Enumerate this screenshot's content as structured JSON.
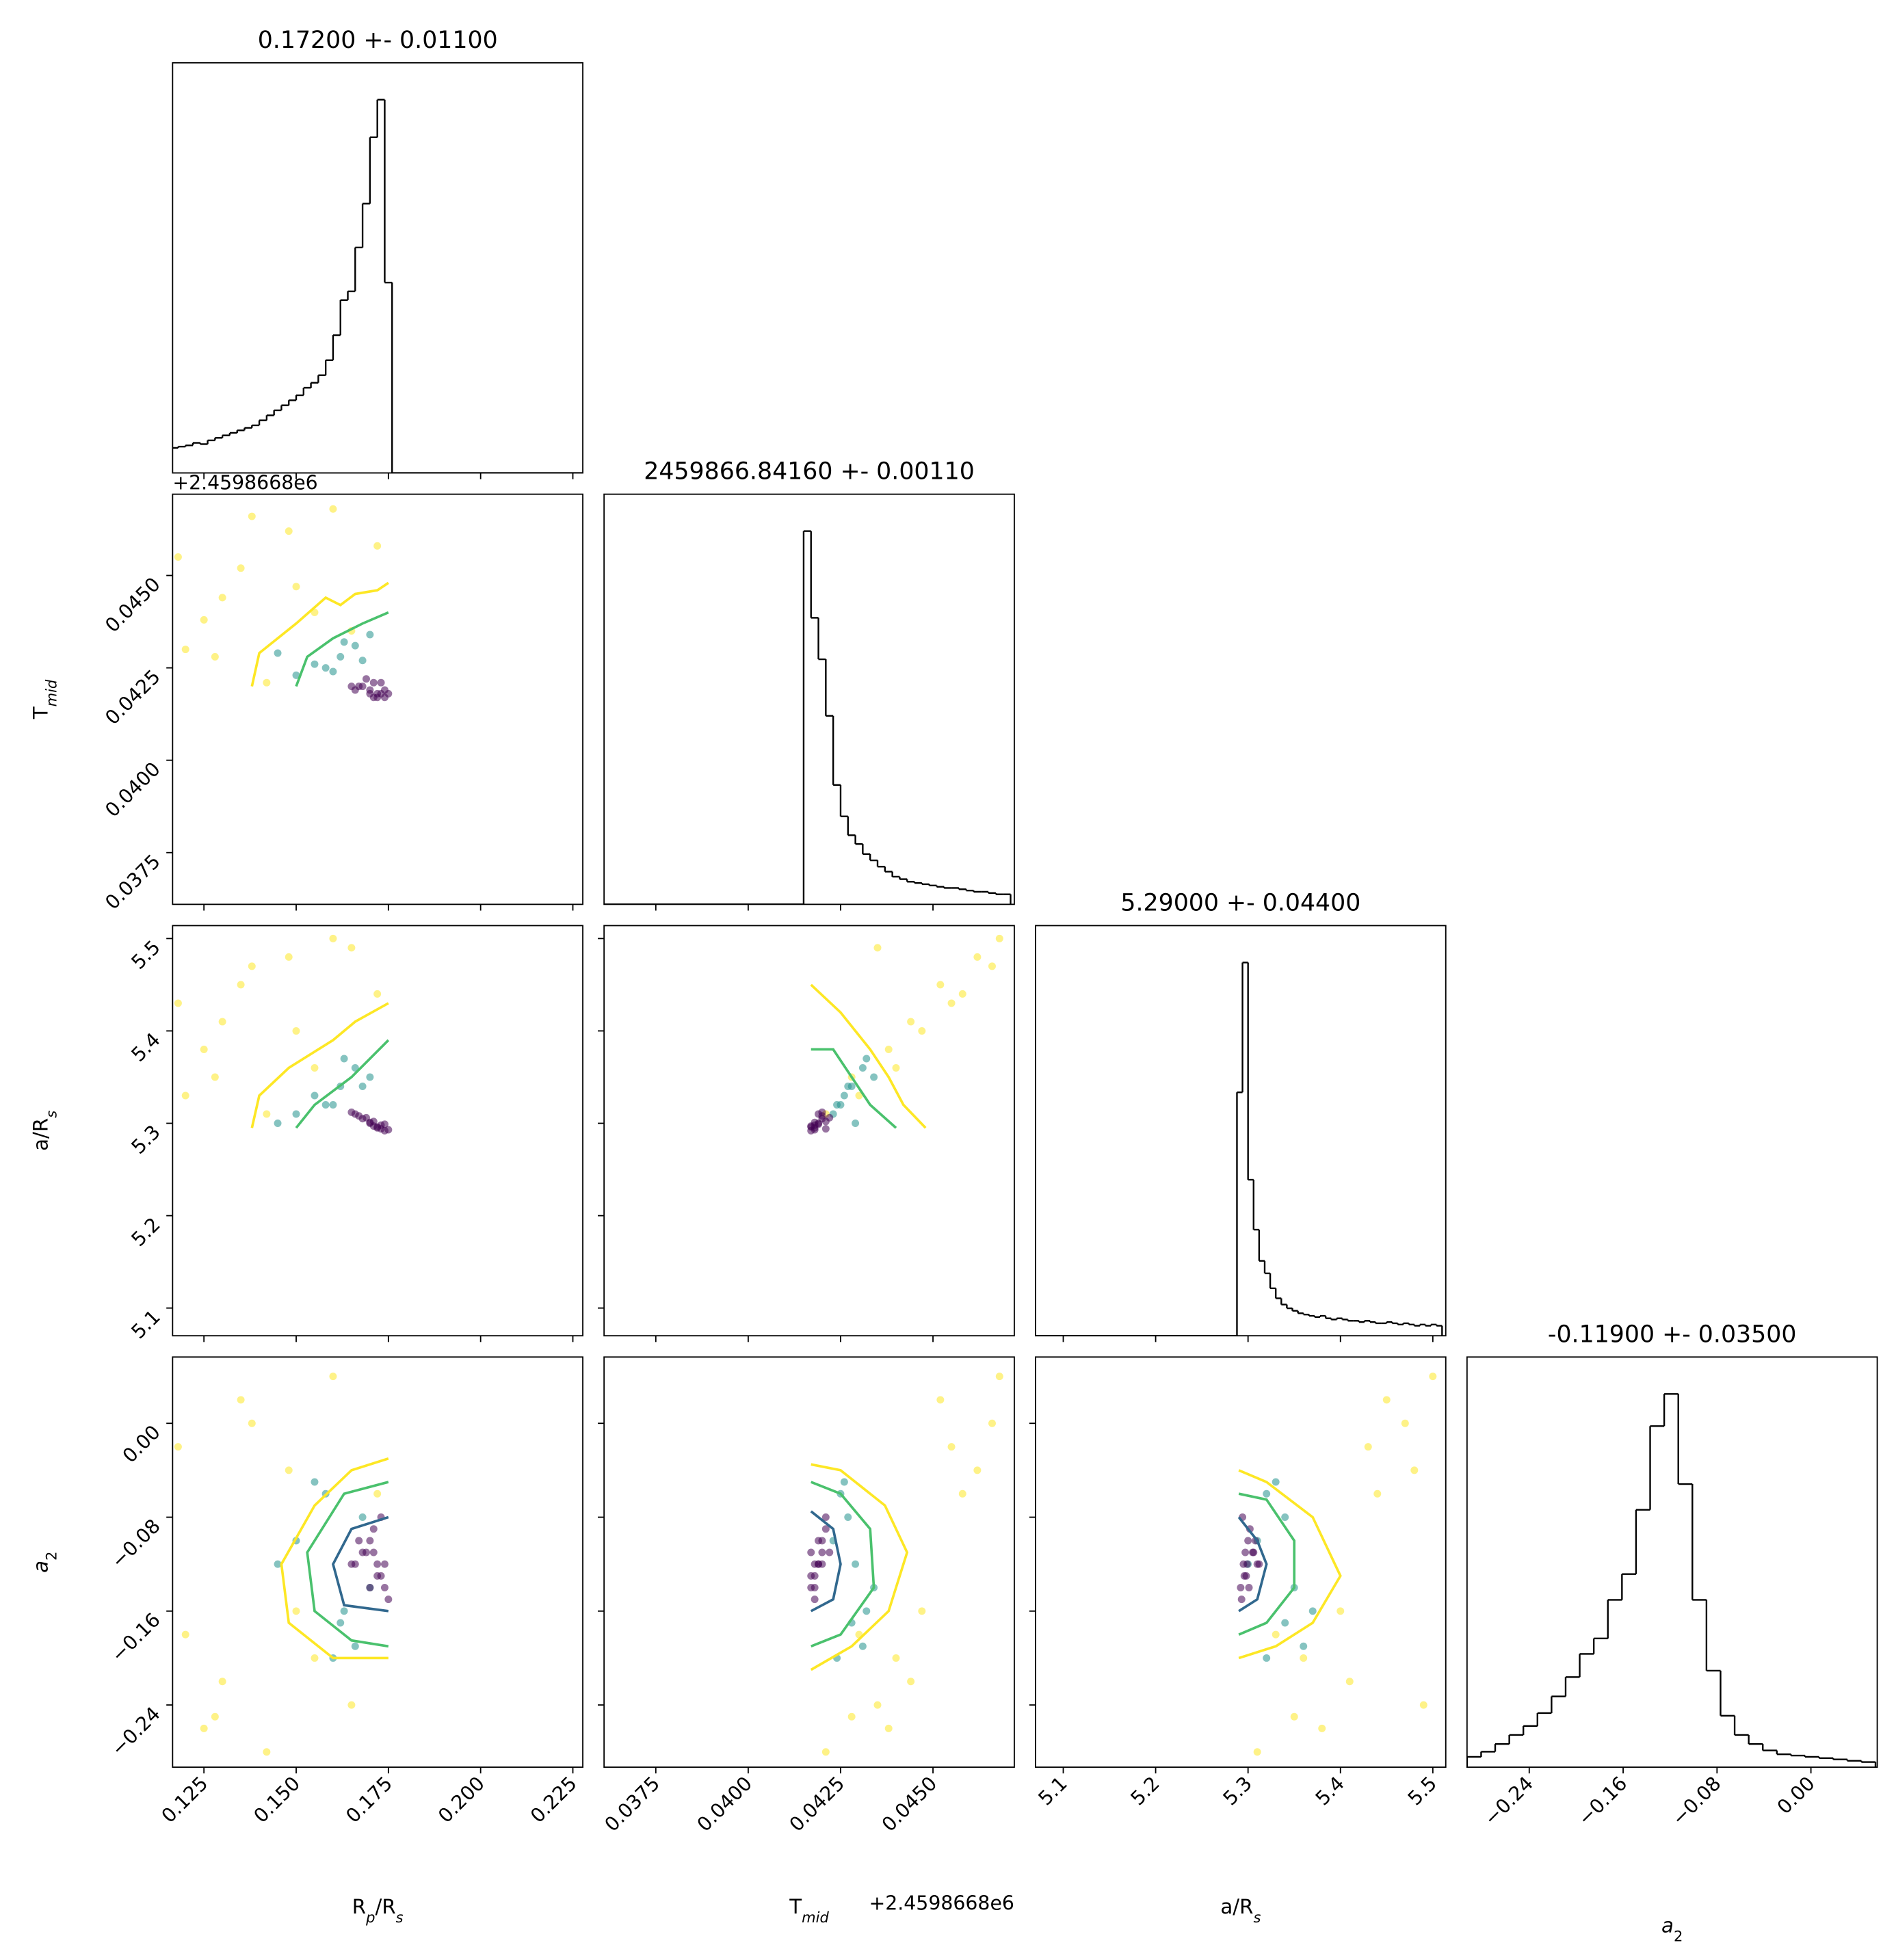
{
  "chart_data": {
    "type": "corner",
    "hist_color": "#000000",
    "params": [
      {
        "title": "0.17200 +- 0.01100",
        "label": [
          {
            "text": "R"
          },
          {
            "text": "p",
            "sub": true,
            "italic": true
          },
          {
            "text": "/R"
          },
          {
            "text": "s",
            "sub": true,
            "italic": true
          }
        ],
        "lim": [
          0.1165,
          0.2277
        ],
        "ticks": [
          0.125,
          {
            "value": 0.15,
            "label": "0.150"
          },
          0.175,
          {
            "value": 0.2,
            "label": "0.200"
          },
          0.225
        ],
        "hist": {
          "bins": [
            0.116,
            0.118,
            0.12,
            0.122,
            0.124,
            0.126,
            0.128,
            0.13,
            0.132,
            0.134,
            0.136,
            0.138,
            0.14,
            0.142,
            0.144,
            0.146,
            0.148,
            0.15,
            0.152,
            0.154,
            0.156,
            0.158,
            0.16,
            0.162,
            0.164,
            0.166,
            0.168,
            0.17,
            0.172,
            0.174,
            0.176,
            0.228
          ],
          "counts": [
            20,
            21,
            22,
            24,
            23,
            26,
            28,
            30,
            32,
            34,
            36,
            38,
            42,
            46,
            50,
            54,
            58,
            62,
            68,
            72,
            78,
            90,
            110,
            138,
            145,
            180,
            215,
            268,
            298,
            152,
            0
          ]
        }
      },
      {
        "title": "2459866.84160 +- 0.00110",
        "label": [
          {
            "text": "T"
          },
          {
            "text": "mid",
            "sub": true,
            "italic": true
          }
        ],
        "offset": "+2.4598668e6",
        "lim": [
          0.0361,
          0.0472
        ],
        "ticks": [
          0.0375,
          {
            "value": 0.04,
            "label": "0.0400"
          },
          0.0425,
          {
            "value": 0.045,
            "label": "0.0450"
          }
        ],
        "hist": {
          "bins": [
            0.0361,
            0.0415,
            0.0417,
            0.0419,
            0.0421,
            0.0423,
            0.0425,
            0.0427,
            0.0429,
            0.0431,
            0.0433,
            0.0435,
            0.0437,
            0.0439,
            0.0441,
            0.0443,
            0.0445,
            0.0447,
            0.0449,
            0.0451,
            0.0453,
            0.0455,
            0.0457,
            0.0459,
            0.0461,
            0.0463,
            0.0465,
            0.0467,
            0.0469,
            0.0471
          ],
          "counts": [
            0,
            297,
            228,
            195,
            150,
            95,
            70,
            55,
            48,
            40,
            35,
            30,
            26,
            22,
            20,
            18,
            17,
            16,
            15,
            14,
            13,
            13,
            12,
            11,
            10,
            10,
            9,
            8,
            8
          ]
        }
      },
      {
        "title": "5.29000 +- 0.04400",
        "label": [
          {
            "text": "a/R"
          },
          {
            "text": "s",
            "sub": true,
            "italic": true
          }
        ],
        "lim": [
          5.07,
          5.514
        ],
        "ticks": [
          5.1,
          5.2,
          5.3,
          5.4,
          5.5
        ],
        "hist": {
          "bins": [
            5.07,
            5.288,
            5.294,
            5.3,
            5.306,
            5.312,
            5.318,
            5.324,
            5.33,
            5.336,
            5.342,
            5.348,
            5.354,
            5.36,
            5.366,
            5.372,
            5.378,
            5.384,
            5.39,
            5.396,
            5.402,
            5.408,
            5.414,
            5.42,
            5.426,
            5.432,
            5.438,
            5.444,
            5.45,
            5.456,
            5.462,
            5.468,
            5.474,
            5.48,
            5.486,
            5.492,
            5.498,
            5.504,
            5.51
          ],
          "counts": [
            0,
            195,
            299,
            125,
            85,
            60,
            50,
            38,
            30,
            25,
            22,
            20,
            18,
            17,
            16,
            15,
            16,
            14,
            13,
            14,
            13,
            12,
            12,
            11,
            12,
            11,
            10,
            10,
            11,
            10,
            9,
            10,
            9,
            8,
            9,
            8,
            9,
            8
          ]
        }
      },
      {
        "title": "-0.11900 +- 0.03500",
        "label": [
          {
            "text": "a",
            "italic": true
          },
          {
            "text": "2",
            "sub": true
          }
        ],
        "lim": [
          -0.293,
          0.0565
        ],
        "ticks": [
          {
            "value": -0.24,
            "label": "−0.24"
          },
          {
            "value": -0.16,
            "label": "−0.16"
          },
          {
            "value": -0.08,
            "label": "−0.08"
          },
          {
            "value": 0,
            "label": "0.00"
          }
        ],
        "hist": {
          "bins": [
            -0.293,
            -0.281,
            -0.269,
            -0.257,
            -0.245,
            -0.233,
            -0.221,
            -0.209,
            -0.197,
            -0.185,
            -0.173,
            -0.161,
            -0.149,
            -0.137,
            -0.125,
            -0.113,
            -0.101,
            -0.089,
            -0.077,
            -0.065,
            -0.053,
            -0.041,
            -0.029,
            -0.017,
            -0.005,
            0.007,
            0.019,
            0.031,
            0.043,
            0.055
          ],
          "counts": [
            8,
            12,
            18,
            25,
            32,
            42,
            55,
            70,
            88,
            100,
            130,
            150,
            200,
            265,
            290,
            220,
            130,
            75,
            40,
            25,
            18,
            13,
            10,
            9,
            8,
            7,
            6,
            5,
            4
          ]
        }
      }
    ],
    "samples": [
      {
        "color": "#fde725",
        "values": [
          [
            0.125,
            0.135,
            0.12,
            0.148,
            0.13,
            0.16,
            0.142,
            0.118,
            0.155,
            0.138,
            0.128,
            0.172,
            0.15,
            0.165
          ],
          [
            0.0438,
            0.0452,
            0.043,
            0.0462,
            0.0444,
            0.0468,
            0.0421,
            0.0455,
            0.044,
            0.0466,
            0.0428,
            0.0458,
            0.0447,
            0.0435
          ],
          [
            5.38,
            5.45,
            5.33,
            5.48,
            5.41,
            5.5,
            5.31,
            5.43,
            5.36,
            5.47,
            5.35,
            5.44,
            5.4,
            5.49
          ],
          [
            -0.26,
            0.02,
            -0.18,
            -0.04,
            -0.22,
            0.04,
            -0.28,
            -0.02,
            -0.2,
            0.0,
            -0.25,
            -0.06,
            -0.16,
            -0.24
          ]
        ]
      },
      {
        "color": "#21918c",
        "values": [
          [
            0.158,
            0.162,
            0.15,
            0.166,
            0.155,
            0.17,
            0.16,
            0.145,
            0.168,
            0.163
          ],
          [
            0.0425,
            0.0428,
            0.0423,
            0.0431,
            0.0426,
            0.0434,
            0.0424,
            0.0429,
            0.0427,
            0.0432
          ],
          [
            5.32,
            5.34,
            5.31,
            5.36,
            5.33,
            5.35,
            5.32,
            5.3,
            5.34,
            5.37
          ],
          [
            -0.06,
            -0.17,
            -0.1,
            -0.19,
            -0.05,
            -0.14,
            -0.2,
            -0.12,
            -0.08,
            -0.16
          ]
        ]
      },
      {
        "color": "#440154",
        "values": [
          [
            0.172,
            0.17,
            0.174,
            0.168,
            0.173,
            0.171,
            0.166,
            0.175,
            0.169,
            0.172,
            0.167,
            0.174,
            0.17,
            0.173,
            0.165,
            0.171
          ],
          [
            0.0418,
            0.0419,
            0.0417,
            0.042,
            0.0418,
            0.0421,
            0.0419,
            0.0418,
            0.0422,
            0.0417,
            0.042,
            0.0419,
            0.0418,
            0.0421,
            0.042,
            0.0417
          ],
          [
            5.295,
            5.3,
            5.292,
            5.305,
            5.298,
            5.302,
            5.31,
            5.293,
            5.306,
            5.296,
            5.308,
            5.299,
            5.301,
            5.294,
            5.312,
            5.297
          ],
          [
            -0.12,
            -0.1,
            -0.14,
            -0.11,
            -0.13,
            -0.09,
            -0.12,
            -0.15,
            -0.11,
            -0.13,
            -0.1,
            -0.12,
            -0.14,
            -0.08,
            -0.12,
            -0.11
          ]
        ]
      }
    ],
    "pairs": [
      {
        "contours": [
          {
            "color": "#fde725",
            "x": [
              0.138,
              0.14,
              0.15,
              0.158,
              0.162,
              0.166,
              0.172,
              0.175
            ],
            "y": [
              0.042,
              0.0429,
              0.0437,
              0.0444,
              0.0442,
              0.0445,
              0.0446,
              0.0448
            ]
          },
          {
            "color": "#4ac16d",
            "x": [
              0.15,
              0.153,
              0.16,
              0.168,
              0.175
            ],
            "y": [
              0.042,
              0.0428,
              0.0433,
              0.0437,
              0.044
            ]
          }
        ]
      },
      {
        "contours": [
          {
            "color": "#fde725",
            "x": [
              0.138,
              0.14,
              0.148,
              0.16,
              0.166,
              0.175
            ],
            "y": [
              5.295,
              5.33,
              5.36,
              5.39,
              5.41,
              5.43
            ]
          },
          {
            "color": "#4ac16d",
            "x": [
              0.15,
              0.155,
              0.165,
              0.175
            ],
            "y": [
              5.295,
              5.32,
              5.35,
              5.39
            ]
          }
        ]
      },
      {
        "contours": [
          {
            "color": "#fde725",
            "x": [
              0.0417,
              0.0425,
              0.0433,
              0.0438,
              0.0442,
              0.0448
            ],
            "y": [
              5.45,
              5.42,
              5.38,
              5.35,
              5.32,
              5.295
            ]
          },
          {
            "color": "#4ac16d",
            "x": [
              0.0417,
              0.0423,
              0.0428,
              0.0433,
              0.044
            ],
            "y": [
              5.38,
              5.38,
              5.35,
              5.32,
              5.295
            ]
          }
        ]
      },
      {
        "contours": [
          {
            "color": "#fde725",
            "x": [
              0.175,
              0.165,
              0.155,
              0.146,
              0.148,
              0.16,
              0.175
            ],
            "y": [
              -0.03,
              -0.04,
              -0.07,
              -0.12,
              -0.17,
              -0.2,
              -0.2
            ]
          },
          {
            "color": "#4ac16d",
            "x": [
              0.175,
              0.163,
              0.153,
              0.155,
              0.165,
              0.175
            ],
            "y": [
              -0.05,
              -0.06,
              -0.11,
              -0.16,
              -0.185,
              -0.19
            ]
          },
          {
            "color": "#31688e",
            "x": [
              0.175,
              0.165,
              0.16,
              0.163,
              0.175
            ],
            "y": [
              -0.08,
              -0.09,
              -0.12,
              -0.155,
              -0.16
            ]
          }
        ]
      },
      {
        "contours": [
          {
            "color": "#fde725",
            "x": [
              0.0417,
              0.0425,
              0.0437,
              0.0443,
              0.0438,
              0.0428,
              0.0417
            ],
            "y": [
              -0.035,
              -0.04,
              -0.07,
              -0.11,
              -0.16,
              -0.19,
              -0.21
            ]
          },
          {
            "color": "#4ac16d",
            "x": [
              0.0417,
              0.0425,
              0.0433,
              0.0434,
              0.0425,
              0.0417
            ],
            "y": [
              -0.05,
              -0.06,
              -0.09,
              -0.14,
              -0.18,
              -0.19
            ]
          },
          {
            "color": "#31688e",
            "x": [
              0.0417,
              0.0423,
              0.0425,
              0.0423,
              0.0417
            ],
            "y": [
              -0.075,
              -0.09,
              -0.12,
              -0.15,
              -0.16
            ]
          }
        ]
      },
      {
        "contours": [
          {
            "color": "#fde725",
            "x": [
              5.29,
              5.32,
              5.37,
              5.4,
              5.37,
              5.33,
              5.29
            ],
            "y": [
              -0.04,
              -0.05,
              -0.08,
              -0.13,
              -0.17,
              -0.19,
              -0.2
            ]
          },
          {
            "color": "#4ac16d",
            "x": [
              5.29,
              5.32,
              5.35,
              5.35,
              5.32,
              5.29
            ],
            "y": [
              -0.06,
              -0.065,
              -0.1,
              -0.14,
              -0.17,
              -0.18
            ]
          },
          {
            "color": "#31688e",
            "x": [
              5.29,
              5.31,
              5.32,
              5.31,
              5.29
            ],
            "y": [
              -0.08,
              -0.1,
              -0.12,
              -0.15,
              -0.16
            ]
          }
        ]
      }
    ]
  }
}
